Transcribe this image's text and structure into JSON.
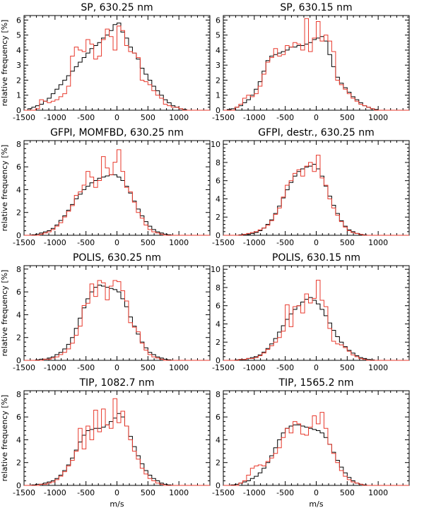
{
  "figure": {
    "ylabel": "relative frequency [%]",
    "xlabel": "m/s",
    "series_colors": {
      "reference": "#000000",
      "comparison": "#e8392c"
    }
  },
  "chart_data": [
    {
      "type": "histogram-step",
      "title": "SP, 630.25 nm",
      "xlim": [
        -1500,
        1500
      ],
      "ylim": [
        0,
        6.3
      ],
      "xticks": [
        -1500,
        -1000,
        -500,
        0,
        500,
        1000
      ],
      "yticks": [
        0,
        1,
        2,
        3,
        4,
        5,
        6
      ],
      "ylabel": "relative frequency [%]",
      "xlabel": "",
      "bin_edges_start": -1500,
      "bin_width": 62.5,
      "series": [
        {
          "name": "black",
          "color": "#000000",
          "values": [
            0.0,
            0.1,
            0.2,
            0.3,
            0.4,
            0.6,
            0.8,
            1.1,
            1.4,
            1.7,
            2.0,
            2.3,
            2.6,
            2.9,
            3.2,
            3.5,
            3.8,
            4.1,
            4.3,
            4.5,
            4.8,
            5.0,
            5.3,
            5.7,
            5.8,
            5.2,
            4.8,
            4.2,
            3.8,
            3.4,
            2.8,
            2.4,
            2.0,
            1.6,
            1.3,
            1.0,
            0.7,
            0.5,
            0.3,
            0.2,
            0.1,
            0.05,
            0.0,
            0.0,
            0.0,
            0.0,
            0.0,
            0.0
          ]
        },
        {
          "name": "red",
          "color": "#e8392c",
          "values": [
            0.0,
            0.0,
            0.0,
            0.1,
            0.7,
            0.6,
            0.5,
            0.6,
            0.7,
            0.9,
            1.1,
            1.6,
            3.6,
            4.2,
            4.0,
            3.9,
            4.7,
            4.4,
            3.4,
            3.6,
            4.7,
            5.4,
            4.9,
            4.0,
            5.6,
            5.3,
            4.3,
            3.9,
            3.8,
            3.5,
            2.0,
            1.9,
            1.7,
            1.3,
            1.0,
            0.8,
            0.4,
            0.3,
            0.2,
            0.2,
            0.1,
            0.0,
            0.0,
            0.0,
            0.0,
            0.0,
            0.0,
            0.0
          ]
        }
      ]
    },
    {
      "type": "histogram-step",
      "title": "SP, 630.15 nm",
      "xlim": [
        -1500,
        1500
      ],
      "ylim": [
        0,
        6.3
      ],
      "xticks": [
        -1500,
        -1000,
        -500,
        0,
        500,
        1000
      ],
      "yticks": [
        0,
        1,
        2,
        3,
        4,
        5,
        6
      ],
      "ylabel": "",
      "xlabel": "",
      "bin_edges_start": -1500,
      "bin_width": 62.5,
      "series": [
        {
          "name": "black",
          "color": "#000000",
          "values": [
            0.0,
            0.05,
            0.1,
            0.2,
            0.3,
            0.5,
            0.7,
            1.0,
            1.4,
            1.9,
            2.6,
            3.3,
            3.6,
            3.7,
            3.8,
            3.9,
            4.0,
            4.2,
            4.2,
            4.3,
            4.3,
            4.4,
            4.5,
            4.7,
            4.8,
            4.9,
            4.6,
            3.7,
            2.9,
            2.2,
            1.8,
            1.5,
            1.2,
            0.9,
            0.7,
            0.5,
            0.3,
            0.2,
            0.1,
            0.05,
            0.0,
            0.0,
            0.0,
            0.0,
            0.0,
            0.0,
            0.0,
            0.0
          ]
        },
        {
          "name": "red",
          "color": "#e8392c",
          "values": [
            0.0,
            0.0,
            0.0,
            0.2,
            0.4,
            0.8,
            1.0,
            0.9,
            1.1,
            1.6,
            2.4,
            3.2,
            3.5,
            4.1,
            3.6,
            3.7,
            4.3,
            4.2,
            4.5,
            4.4,
            4.0,
            6.1,
            3.9,
            4.8,
            5.9,
            4.6,
            5.0,
            4.6,
            3.9,
            2.0,
            1.7,
            1.4,
            1.1,
            0.8,
            0.6,
            0.4,
            0.3,
            0.2,
            0.1,
            0.0,
            0.0,
            0.0,
            0.0,
            0.0,
            0.0,
            0.0,
            0.0,
            0.0
          ]
        }
      ]
    },
    {
      "type": "histogram-step",
      "title": "GFPI, MOMFBD, 630.25 nm",
      "xlim": [
        -1500,
        1500
      ],
      "ylim": [
        0,
        8.3
      ],
      "xticks": [
        -1500,
        -1000,
        -500,
        0,
        500,
        1000
      ],
      "yticks": [
        0,
        2,
        4,
        6,
        8
      ],
      "ylabel": "relative frequency [%]",
      "xlabel": "",
      "bin_edges_start": -1500,
      "bin_width": 62.5,
      "series": [
        {
          "name": "black",
          "color": "#000000",
          "values": [
            0.0,
            0.0,
            0.05,
            0.1,
            0.2,
            0.3,
            0.4,
            0.6,
            0.9,
            1.3,
            1.7,
            2.2,
            2.7,
            3.2,
            3.6,
            4.0,
            4.3,
            4.6,
            4.8,
            5.0,
            5.1,
            5.2,
            5.3,
            5.3,
            5.1,
            4.8,
            4.3,
            3.7,
            3.0,
            2.3,
            1.7,
            1.2,
            0.8,
            0.5,
            0.3,
            0.2,
            0.1,
            0.05,
            0.0,
            0.0,
            0.0,
            0.0,
            0.0,
            0.0,
            0.0,
            0.0,
            0.0,
            0.0
          ]
        },
        {
          "name": "red",
          "color": "#e8392c",
          "values": [
            0.0,
            0.0,
            0.0,
            0.0,
            0.1,
            0.2,
            0.3,
            0.5,
            0.8,
            1.1,
            1.6,
            2.1,
            2.6,
            3.5,
            3.8,
            4.4,
            5.6,
            5.1,
            4.2,
            4.8,
            6.9,
            5.9,
            5.3,
            6.4,
            7.5,
            5.6,
            4.2,
            3.8,
            2.9,
            2.0,
            1.5,
            0.9,
            0.5,
            0.3,
            0.2,
            0.1,
            0.0,
            0.0,
            0.0,
            0.0,
            0.0,
            0.0,
            0.0,
            0.0,
            0.0,
            0.0,
            0.0,
            0.0
          ]
        }
      ]
    },
    {
      "type": "histogram-step",
      "title": "GFPI, destr., 630.25 nm",
      "xlim": [
        -1500,
        1500
      ],
      "ylim": [
        0,
        10.4
      ],
      "xticks": [
        -1500,
        -1000,
        -500,
        0,
        500,
        1000
      ],
      "yticks": [
        0,
        2,
        4,
        6,
        8,
        10
      ],
      "ylabel": "",
      "xlabel": "",
      "bin_edges_start": -1500,
      "bin_width": 62.5,
      "series": [
        {
          "name": "black",
          "color": "#000000",
          "values": [
            0.0,
            0.0,
            0.0,
            0.0,
            0.05,
            0.1,
            0.1,
            0.2,
            0.3,
            0.5,
            0.8,
            1.2,
            1.7,
            2.4,
            3.2,
            4.1,
            5.0,
            5.8,
            6.5,
            7.0,
            7.3,
            7.5,
            7.6,
            7.8,
            7.3,
            6.5,
            5.4,
            4.3,
            3.3,
            2.4,
            1.6,
            1.0,
            0.6,
            0.4,
            0.2,
            0.1,
            0.05,
            0.0,
            0.0,
            0.0,
            0.0,
            0.0,
            0.0,
            0.0,
            0.0,
            0.0,
            0.0,
            0.0
          ]
        },
        {
          "name": "red",
          "color": "#e8392c",
          "values": [
            0.0,
            0.0,
            0.0,
            0.0,
            0.0,
            0.1,
            0.2,
            0.3,
            0.4,
            0.6,
            0.8,
            1.1,
            1.6,
            2.3,
            3.0,
            4.2,
            5.5,
            6.0,
            6.8,
            7.2,
            6.5,
            7.6,
            8.0,
            7.0,
            8.8,
            6.3,
            5.5,
            4.0,
            3.0,
            2.2,
            1.5,
            0.9,
            0.5,
            0.3,
            0.2,
            0.1,
            0.0,
            0.0,
            0.0,
            0.0,
            0.0,
            0.0,
            0.0,
            0.0,
            0.0,
            0.0,
            0.0,
            0.0
          ]
        }
      ]
    },
    {
      "type": "histogram-step",
      "title": "POLIS, 630.25 nm",
      "xlim": [
        -1500,
        1500
      ],
      "ylim": [
        0,
        8.3
      ],
      "xticks": [
        -1500,
        -1000,
        -500,
        0,
        500,
        1000
      ],
      "yticks": [
        0,
        2,
        4,
        6,
        8
      ],
      "ylabel": "relative frequency [%]",
      "xlabel": "",
      "bin_edges_start": -1500,
      "bin_width": 62.5,
      "series": [
        {
          "name": "black",
          "color": "#000000",
          "values": [
            0.0,
            0.0,
            0.0,
            0.05,
            0.1,
            0.1,
            0.2,
            0.3,
            0.5,
            0.7,
            1.0,
            1.4,
            2.0,
            2.8,
            3.7,
            4.6,
            5.4,
            6.0,
            6.4,
            6.6,
            6.5,
            6.4,
            6.3,
            6.2,
            6.0,
            5.4,
            4.7,
            3.8,
            3.0,
            2.3,
            1.6,
            1.1,
            0.7,
            0.5,
            0.3,
            0.2,
            0.1,
            0.05,
            0.0,
            0.0,
            0.0,
            0.0,
            0.0,
            0.0,
            0.0,
            0.0,
            0.0,
            0.0
          ]
        },
        {
          "name": "red",
          "color": "#e8392c",
          "values": [
            0.0,
            0.0,
            0.0,
            0.0,
            0.0,
            0.1,
            0.1,
            0.2,
            0.3,
            0.5,
            0.7,
            1.0,
            1.5,
            2.2,
            3.0,
            4.8,
            5.0,
            6.7,
            5.6,
            7.0,
            6.8,
            5.3,
            6.5,
            7.0,
            6.9,
            6.1,
            5.2,
            3.3,
            2.9,
            2.5,
            1.5,
            0.9,
            0.5,
            0.3,
            0.2,
            0.1,
            0.0,
            0.0,
            0.0,
            0.0,
            0.0,
            0.0,
            0.0,
            0.0,
            0.0,
            0.0,
            0.0,
            0.0
          ]
        }
      ]
    },
    {
      "type": "histogram-step",
      "title": "POLIS, 630.15 nm",
      "xlim": [
        -1500,
        1500
      ],
      "ylim": [
        0,
        10.4
      ],
      "xticks": [
        -1500,
        -1000,
        -500,
        0,
        500,
        1000
      ],
      "yticks": [
        0,
        2,
        4,
        6,
        8,
        10
      ],
      "ylabel": "",
      "xlabel": "",
      "bin_edges_start": -1500,
      "bin_width": 62.5,
      "series": [
        {
          "name": "black",
          "color": "#000000",
          "values": [
            0.0,
            0.0,
            0.0,
            0.05,
            0.1,
            0.1,
            0.2,
            0.3,
            0.4,
            0.6,
            0.9,
            1.3,
            1.8,
            2.4,
            3.1,
            3.8,
            4.5,
            5.1,
            5.6,
            6.0,
            6.4,
            6.7,
            6.9,
            6.6,
            6.2,
            5.6,
            4.9,
            4.1,
            3.3,
            2.6,
            2.0,
            1.5,
            1.1,
            0.8,
            0.5,
            0.3,
            0.2,
            0.1,
            0.05,
            0.0,
            0.0,
            0.0,
            0.0,
            0.0,
            0.0,
            0.0,
            0.0,
            0.0
          ]
        },
        {
          "name": "red",
          "color": "#e8392c",
          "values": [
            0.0,
            0.0,
            0.0,
            0.0,
            0.1,
            0.1,
            0.2,
            0.2,
            0.3,
            0.5,
            0.8,
            1.2,
            1.6,
            2.0,
            2.5,
            3.2,
            6.1,
            3.7,
            5.9,
            6.0,
            5.2,
            7.3,
            6.3,
            6.8,
            8.8,
            6.6,
            5.9,
            3.5,
            2.1,
            1.8,
            1.7,
            1.4,
            1.0,
            0.6,
            0.4,
            0.2,
            0.1,
            0.0,
            0.0,
            0.0,
            0.0,
            0.0,
            0.0,
            0.0,
            0.0,
            0.0,
            0.0,
            0.0
          ]
        }
      ]
    },
    {
      "type": "histogram-step",
      "title": "TIP, 1082.7 nm",
      "xlim": [
        -1500,
        1500
      ],
      "ylim": [
        0,
        8.3
      ],
      "xticks": [
        -1500,
        -1000,
        -500,
        0,
        500,
        1000
      ],
      "yticks": [
        0,
        2,
        4,
        6,
        8
      ],
      "ylabel": "relative frequency [%]",
      "xlabel": "m/s",
      "bin_edges_start": -1500,
      "bin_width": 62.5,
      "series": [
        {
          "name": "black",
          "color": "#000000",
          "values": [
            0.0,
            0.0,
            0.05,
            0.1,
            0.1,
            0.2,
            0.3,
            0.4,
            0.6,
            0.9,
            1.3,
            1.8,
            2.4,
            3.1,
            3.8,
            4.4,
            4.8,
            4.9,
            5.0,
            5.0,
            5.1,
            5.3,
            5.6,
            5.9,
            6.3,
            6.0,
            5.2,
            4.3,
            3.4,
            2.6,
            1.9,
            1.3,
            0.9,
            0.6,
            0.4,
            0.2,
            0.1,
            0.05,
            0.0,
            0.0,
            0.0,
            0.0,
            0.0,
            0.0,
            0.0,
            0.0,
            0.0,
            0.0
          ]
        },
        {
          "name": "red",
          "color": "#e8392c",
          "values": [
            0.0,
            0.0,
            0.0,
            0.0,
            0.1,
            0.1,
            0.2,
            0.3,
            0.5,
            0.8,
            1.2,
            1.7,
            2.2,
            3.0,
            5.0,
            3.2,
            5.2,
            4.0,
            6.6,
            4.7,
            6.7,
            5.3,
            5.0,
            7.6,
            5.5,
            6.5,
            5.2,
            4.0,
            3.0,
            2.3,
            1.5,
            1.0,
            0.6,
            0.4,
            0.2,
            0.1,
            0.0,
            0.0,
            0.0,
            0.0,
            0.0,
            0.0,
            0.0,
            0.0,
            0.0,
            0.0,
            0.0,
            0.0
          ]
        }
      ]
    },
    {
      "type": "histogram-step",
      "title": "TIP, 1565.2 nm",
      "xlim": [
        -1500,
        1500
      ],
      "ylim": [
        0,
        8.3
      ],
      "xticks": [
        -1500,
        -1000,
        -500,
        0,
        500,
        1000
      ],
      "yticks": [
        0,
        2,
        4,
        6,
        8
      ],
      "ylabel": "",
      "xlabel": "m/s",
      "bin_edges_start": -1500,
      "bin_width": 62.5,
      "series": [
        {
          "name": "black",
          "color": "#000000",
          "values": [
            0.0,
            0.0,
            0.05,
            0.1,
            0.2,
            0.3,
            0.4,
            0.6,
            0.8,
            1.1,
            1.5,
            2.0,
            2.6,
            3.3,
            4.0,
            4.6,
            5.0,
            5.2,
            5.3,
            5.3,
            5.2,
            5.1,
            5.0,
            4.9,
            4.8,
            4.6,
            4.2,
            3.6,
            2.9,
            2.2,
            1.6,
            1.1,
            0.7,
            0.4,
            0.2,
            0.1,
            0.05,
            0.0,
            0.0,
            0.0,
            0.0,
            0.0,
            0.0,
            0.0,
            0.0,
            0.0,
            0.0,
            0.0
          ]
        },
        {
          "name": "red",
          "color": "#e8392c",
          "values": [
            0.0,
            0.0,
            0.0,
            0.0,
            0.2,
            0.4,
            0.9,
            1.5,
            1.7,
            1.8,
            1.7,
            2.1,
            2.4,
            2.8,
            3.3,
            4.2,
            5.0,
            4.6,
            5.6,
            5.4,
            4.5,
            4.4,
            5.1,
            6.1,
            5.4,
            6.4,
            5.0,
            3.6,
            2.8,
            2.0,
            1.3,
            0.8,
            0.5,
            0.3,
            0.2,
            0.1,
            0.0,
            0.0,
            0.0,
            0.0,
            0.0,
            0.0,
            0.0,
            0.0,
            0.0,
            0.0,
            0.0,
            0.0
          ]
        }
      ]
    }
  ]
}
